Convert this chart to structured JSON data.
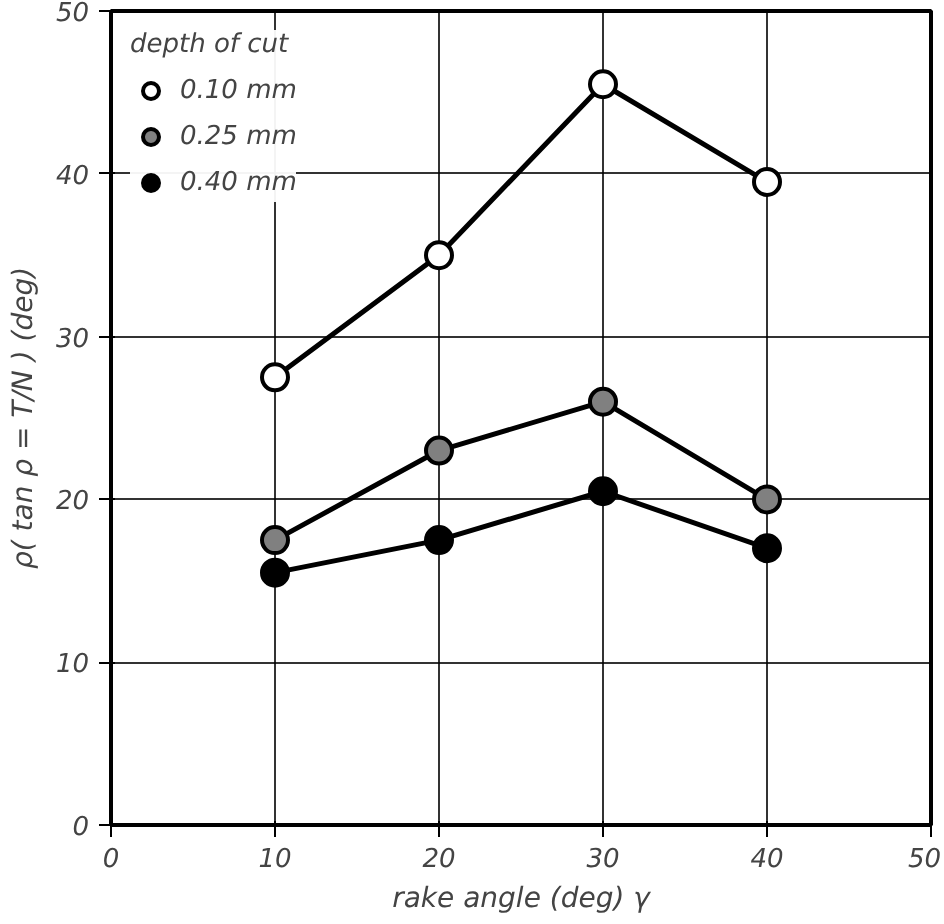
{
  "chart_data": {
    "type": "line",
    "xlabel": "rake angle (deg) γ",
    "ylabel": "ρ( tan ρ = T/N ) (deg)",
    "legend_title": "depth of cut",
    "x": [
      10,
      20,
      30,
      40
    ],
    "series": [
      {
        "name": "0.10 mm",
        "color": "#ffffff",
        "values": [
          27.5,
          35,
          45.5,
          39.5
        ]
      },
      {
        "name": "0.25 mm",
        "color": "#808080",
        "values": [
          17.5,
          23,
          26,
          20
        ]
      },
      {
        "name": "0.40 mm",
        "color": "#000000",
        "values": [
          15.5,
          17.5,
          20.5,
          17
        ]
      }
    ],
    "xlim": [
      0,
      50
    ],
    "xticks": [
      0,
      10,
      20,
      30,
      40,
      50
    ],
    "ylim": [
      0,
      50
    ],
    "yticks": [
      0,
      10,
      20,
      30,
      40,
      50
    ],
    "grid": true,
    "legend": "top left",
    "marker": "circle",
    "line_style": "solid"
  }
}
